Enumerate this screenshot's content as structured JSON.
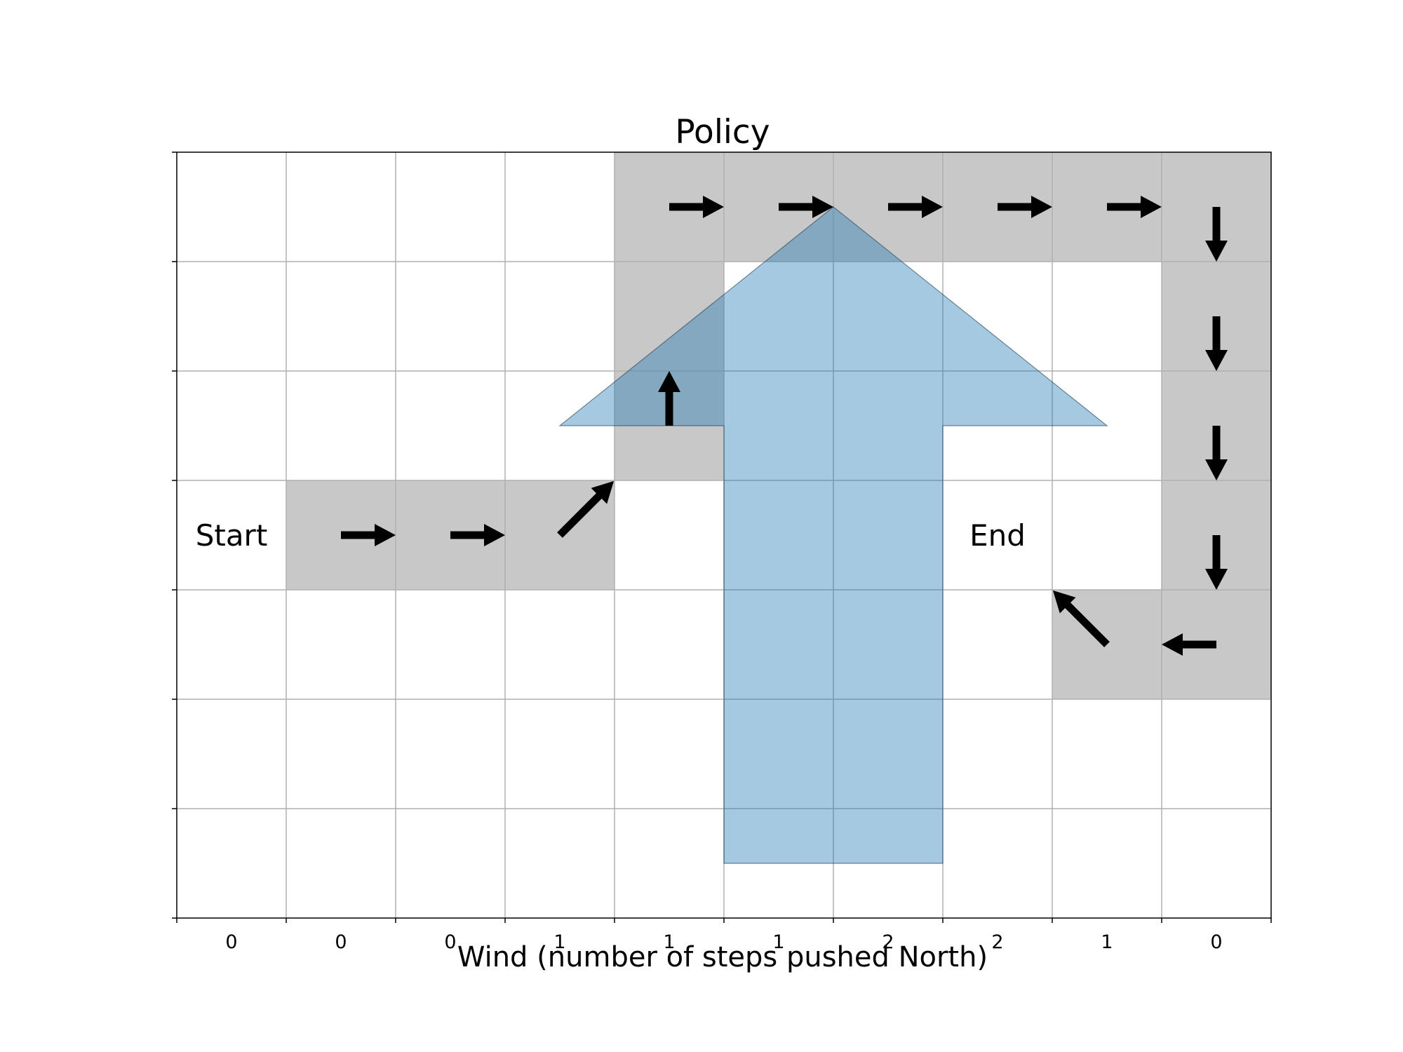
{
  "title": "Policy",
  "xlabel": "Wind (number of steps pushed North)",
  "grid": {
    "cols": 10,
    "rows": 7
  },
  "wind": [
    "0",
    "0",
    "0",
    "1",
    "1",
    "1",
    "2",
    "2",
    "1",
    "0"
  ],
  "labels": {
    "start": {
      "text": "Start",
      "col": 0,
      "row": 3
    },
    "end": {
      "text": "End",
      "col": 7,
      "row": 3
    }
  },
  "path_cells": [
    [
      1,
      3
    ],
    [
      2,
      3
    ],
    [
      3,
      3
    ],
    [
      4,
      2
    ],
    [
      4,
      1
    ],
    [
      4,
      0
    ],
    [
      5,
      0
    ],
    [
      6,
      0
    ],
    [
      7,
      0
    ],
    [
      8,
      0
    ],
    [
      9,
      0
    ],
    [
      9,
      1
    ],
    [
      9,
      2
    ],
    [
      9,
      3
    ],
    [
      9,
      4
    ],
    [
      8,
      4
    ]
  ],
  "policy_arrows": [
    {
      "col": 1,
      "row": 3,
      "direction": "E"
    },
    {
      "col": 2,
      "row": 3,
      "direction": "E"
    },
    {
      "col": 3,
      "row": 3,
      "direction": "NE"
    },
    {
      "col": 4,
      "row": 2,
      "direction": "N"
    },
    {
      "col": 4,
      "row": 0,
      "direction": "E"
    },
    {
      "col": 5,
      "row": 0,
      "direction": "E"
    },
    {
      "col": 6,
      "row": 0,
      "direction": "E"
    },
    {
      "col": 7,
      "row": 0,
      "direction": "E"
    },
    {
      "col": 8,
      "row": 0,
      "direction": "E"
    },
    {
      "col": 9,
      "row": 0,
      "direction": "S"
    },
    {
      "col": 9,
      "row": 1,
      "direction": "S"
    },
    {
      "col": 9,
      "row": 2,
      "direction": "S"
    },
    {
      "col": 9,
      "row": 3,
      "direction": "S"
    },
    {
      "col": 9,
      "row": 4,
      "direction": "W"
    },
    {
      "col": 8,
      "row": 4,
      "direction": "NW"
    }
  ],
  "colors": {
    "path": "#c8c8c8",
    "grid": "#b0b0b0",
    "wind_arrow": "#1f77b4",
    "policy_arrow": "#000000"
  }
}
